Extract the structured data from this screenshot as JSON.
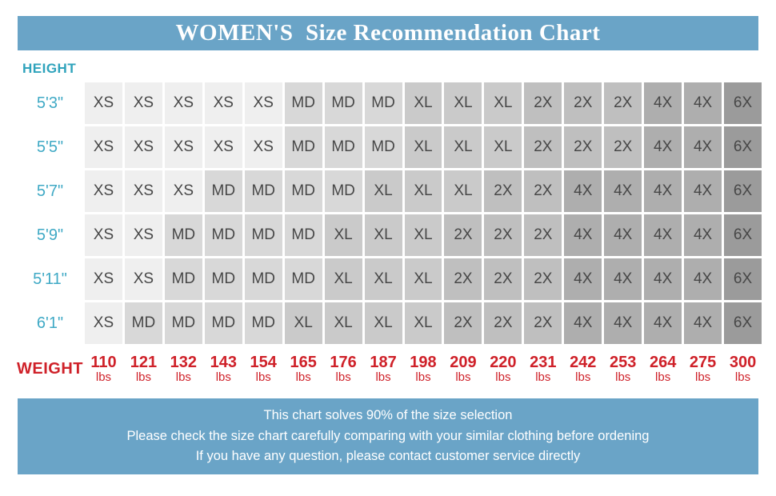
{
  "title": "WOMEN'S  Size Recommendation Chart",
  "height_axis_label": "HEIGHT",
  "weight_axis_label": "WEIGHT",
  "weight_unit": "lbs",
  "colors": {
    "banner_blue": "#6aa4c7",
    "teal": "#2fa3bc",
    "height_label_teal": "#3fa9c5",
    "red": "#cf2129",
    "cell_text": "#474747",
    "sizes": {
      "XS": "#efefef",
      "MD": "#d8d8d8",
      "XL": "#cacaca",
      "2X": "#bfbfbf",
      "4X": "#aeaeae",
      "6X": "#9b9b9b"
    }
  },
  "chart_data": {
    "type": "table",
    "title": "WOMEN'S Size Recommendation Chart",
    "row_axis": "Height",
    "col_axis": "Weight (lbs)",
    "heights": [
      "5'3\"",
      "5'5\"",
      "5'7\"",
      "5'9\"",
      "5'11\"",
      "6'1\""
    ],
    "weights_lbs": [
      110,
      121,
      132,
      143,
      154,
      165,
      176,
      187,
      198,
      209,
      220,
      231,
      242,
      253,
      264,
      275,
      300
    ],
    "sizes": [
      [
        "XS",
        "XS",
        "XS",
        "XS",
        "XS",
        "MD",
        "MD",
        "MD",
        "XL",
        "XL",
        "XL",
        "2X",
        "2X",
        "2X",
        "4X",
        "4X",
        "6X"
      ],
      [
        "XS",
        "XS",
        "XS",
        "XS",
        "XS",
        "MD",
        "MD",
        "MD",
        "XL",
        "XL",
        "XL",
        "2X",
        "2X",
        "2X",
        "4X",
        "4X",
        "6X"
      ],
      [
        "XS",
        "XS",
        "XS",
        "MD",
        "MD",
        "MD",
        "MD",
        "XL",
        "XL",
        "XL",
        "2X",
        "2X",
        "4X",
        "4X",
        "4X",
        "4X",
        "6X"
      ],
      [
        "XS",
        "XS",
        "MD",
        "MD",
        "MD",
        "MD",
        "XL",
        "XL",
        "XL",
        "2X",
        "2X",
        "2X",
        "4X",
        "4X",
        "4X",
        "4X",
        "6X"
      ],
      [
        "XS",
        "XS",
        "MD",
        "MD",
        "MD",
        "MD",
        "XL",
        "XL",
        "XL",
        "2X",
        "2X",
        "2X",
        "4X",
        "4X",
        "4X",
        "4X",
        "6X"
      ],
      [
        "XS",
        "MD",
        "MD",
        "MD",
        "MD",
        "XL",
        "XL",
        "XL",
        "XL",
        "2X",
        "2X",
        "2X",
        "4X",
        "4X",
        "4X",
        "4X",
        "6X"
      ]
    ]
  },
  "footer": {
    "lines": [
      "This chart solves 90% of the size selection",
      "Please check the size chart carefully comparing with your similar clothing before ordening",
      "If you have any question, please contact customer service directly"
    ]
  }
}
